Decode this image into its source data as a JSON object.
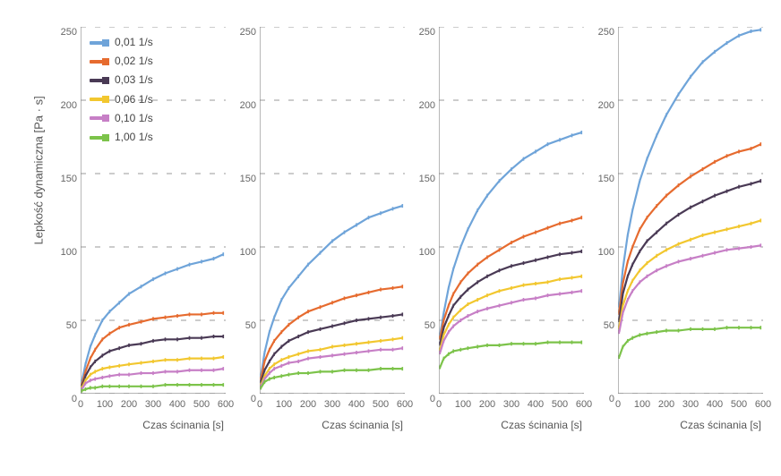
{
  "ylabel": "Lepkość dynamiczna [Pa · s]",
  "xlabel": "Czas ścinania [s]",
  "ylabel_fontsize": 13,
  "xlabel_fontsize": 12,
  "tick_fontsize": 11,
  "background_color": "#ffffff",
  "grid_color": "#cccccc",
  "grid_dash": "2,3",
  "axis_color": "#888888",
  "legend": {
    "items": [
      {
        "label": "0,01 1/s",
        "color": "#6fa4d9"
      },
      {
        "label": "0,02 1/s",
        "color": "#e66b2f"
      },
      {
        "label": "0,03 1/s",
        "color": "#4a3a55"
      },
      {
        "label": "0,06 1/s",
        "color": "#f2c72f"
      },
      {
        "label": "0,10 1/s",
        "color": "#c77fc6"
      },
      {
        "label": "1,00 1/s",
        "color": "#7cc34a"
      }
    ],
    "marker": "square",
    "marker_size": 8,
    "line_width": 3
  },
  "common_axes": {
    "type": "line",
    "xlim": [
      0,
      600
    ],
    "ylim": [
      0,
      250
    ],
    "xticks": [
      0,
      100,
      200,
      300,
      400,
      500,
      600
    ],
    "yticks": [
      0,
      50,
      100,
      150,
      200,
      250
    ],
    "grid_y": true,
    "grid_x": false,
    "line_width": 2.2,
    "marker_size": 3
  },
  "panels": [
    {
      "series": [
        {
          "color": "#6fa4d9",
          "x": [
            5,
            20,
            40,
            60,
            90,
            120,
            160,
            200,
            250,
            300,
            350,
            400,
            450,
            500,
            550,
            590
          ],
          "y": [
            8,
            20,
            32,
            40,
            50,
            56,
            62,
            68,
            73,
            78,
            82,
            85,
            88,
            90,
            92,
            95
          ]
        },
        {
          "color": "#e66b2f",
          "x": [
            5,
            20,
            40,
            60,
            90,
            120,
            160,
            200,
            250,
            300,
            350,
            400,
            450,
            500,
            550,
            590
          ],
          "y": [
            6,
            15,
            24,
            30,
            37,
            41,
            45,
            47,
            49,
            51,
            52,
            53,
            54,
            54,
            55,
            55
          ]
        },
        {
          "color": "#4a3a55",
          "x": [
            5,
            20,
            40,
            60,
            90,
            120,
            160,
            200,
            250,
            300,
            350,
            400,
            450,
            500,
            550,
            590
          ],
          "y": [
            5,
            12,
            18,
            22,
            26,
            29,
            31,
            33,
            34,
            36,
            37,
            37,
            38,
            38,
            39,
            39
          ]
        },
        {
          "color": "#f2c72f",
          "x": [
            5,
            20,
            40,
            60,
            90,
            120,
            160,
            200,
            250,
            300,
            350,
            400,
            450,
            500,
            550,
            590
          ],
          "y": [
            4,
            9,
            13,
            15,
            17,
            18,
            19,
            20,
            21,
            22,
            23,
            23,
            24,
            24,
            24,
            25
          ]
        },
        {
          "color": "#c77fc6",
          "x": [
            5,
            20,
            40,
            60,
            90,
            120,
            160,
            200,
            250,
            300,
            350,
            400,
            450,
            500,
            550,
            590
          ],
          "y": [
            3,
            7,
            9,
            10,
            11,
            12,
            13,
            13,
            14,
            14,
            15,
            15,
            16,
            16,
            16,
            17
          ]
        },
        {
          "color": "#7cc34a",
          "x": [
            5,
            20,
            40,
            60,
            90,
            120,
            160,
            200,
            250,
            300,
            350,
            400,
            450,
            500,
            550,
            590
          ],
          "y": [
            2,
            3,
            4,
            4,
            5,
            5,
            5,
            5,
            5,
            5,
            6,
            6,
            6,
            6,
            6,
            6
          ]
        }
      ]
    },
    {
      "series": [
        {
          "color": "#6fa4d9",
          "x": [
            5,
            20,
            40,
            60,
            90,
            120,
            160,
            200,
            250,
            300,
            350,
            400,
            450,
            500,
            550,
            590
          ],
          "y": [
            12,
            28,
            42,
            52,
            64,
            72,
            80,
            88,
            96,
            104,
            110,
            115,
            120,
            123,
            126,
            128
          ]
        },
        {
          "color": "#e66b2f",
          "x": [
            5,
            20,
            40,
            60,
            90,
            120,
            160,
            200,
            250,
            300,
            350,
            400,
            450,
            500,
            550,
            590
          ],
          "y": [
            10,
            22,
            30,
            36,
            42,
            47,
            52,
            56,
            59,
            62,
            65,
            67,
            69,
            71,
            72,
            73
          ]
        },
        {
          "color": "#4a3a55",
          "x": [
            5,
            20,
            40,
            60,
            90,
            120,
            160,
            200,
            250,
            300,
            350,
            400,
            450,
            500,
            550,
            590
          ],
          "y": [
            8,
            16,
            22,
            27,
            32,
            36,
            39,
            42,
            44,
            46,
            48,
            50,
            51,
            52,
            53,
            54
          ]
        },
        {
          "color": "#f2c72f",
          "x": [
            5,
            20,
            40,
            60,
            90,
            120,
            160,
            200,
            250,
            300,
            350,
            400,
            450,
            500,
            550,
            590
          ],
          "y": [
            6,
            12,
            17,
            20,
            23,
            25,
            27,
            29,
            30,
            32,
            33,
            34,
            35,
            36,
            37,
            38
          ]
        },
        {
          "color": "#c77fc6",
          "x": [
            5,
            20,
            40,
            60,
            90,
            120,
            160,
            200,
            250,
            300,
            350,
            400,
            450,
            500,
            550,
            590
          ],
          "y": [
            5,
            10,
            14,
            17,
            19,
            21,
            22,
            24,
            25,
            26,
            27,
            28,
            29,
            30,
            30,
            31
          ]
        },
        {
          "color": "#7cc34a",
          "x": [
            5,
            20,
            40,
            60,
            90,
            120,
            160,
            200,
            250,
            300,
            350,
            400,
            450,
            500,
            550,
            590
          ],
          "y": [
            4,
            8,
            10,
            11,
            12,
            13,
            14,
            14,
            15,
            15,
            16,
            16,
            16,
            17,
            17,
            17
          ]
        }
      ]
    },
    {
      "series": [
        {
          "color": "#6fa4d9",
          "x": [
            5,
            20,
            40,
            60,
            90,
            120,
            160,
            200,
            250,
            300,
            350,
            400,
            450,
            500,
            550,
            590
          ],
          "y": [
            40,
            55,
            72,
            85,
            100,
            112,
            125,
            135,
            145,
            153,
            160,
            165,
            170,
            173,
            176,
            178
          ]
        },
        {
          "color": "#e66b2f",
          "x": [
            5,
            20,
            40,
            60,
            90,
            120,
            160,
            200,
            250,
            300,
            350,
            400,
            450,
            500,
            550,
            590
          ],
          "y": [
            38,
            50,
            60,
            68,
            76,
            82,
            88,
            93,
            98,
            103,
            107,
            110,
            113,
            116,
            118,
            120
          ]
        },
        {
          "color": "#4a3a55",
          "x": [
            5,
            20,
            40,
            60,
            90,
            120,
            160,
            200,
            250,
            300,
            350,
            400,
            450,
            500,
            550,
            590
          ],
          "y": [
            34,
            45,
            53,
            60,
            66,
            71,
            76,
            80,
            84,
            87,
            89,
            91,
            93,
            95,
            96,
            97
          ]
        },
        {
          "color": "#f2c72f",
          "x": [
            5,
            20,
            40,
            60,
            90,
            120,
            160,
            200,
            250,
            300,
            350,
            400,
            450,
            500,
            550,
            590
          ],
          "y": [
            30,
            40,
            47,
            52,
            57,
            61,
            64,
            67,
            70,
            72,
            74,
            75,
            76,
            78,
            79,
            80
          ]
        },
        {
          "color": "#c77fc6",
          "x": [
            5,
            20,
            40,
            60,
            90,
            120,
            160,
            200,
            250,
            300,
            350,
            400,
            450,
            500,
            550,
            590
          ],
          "y": [
            28,
            36,
            42,
            46,
            50,
            53,
            56,
            58,
            60,
            62,
            64,
            65,
            67,
            68,
            69,
            70
          ]
        },
        {
          "color": "#7cc34a",
          "x": [
            5,
            20,
            40,
            60,
            90,
            120,
            160,
            200,
            250,
            300,
            350,
            400,
            450,
            500,
            550,
            590
          ],
          "y": [
            18,
            24,
            27,
            29,
            30,
            31,
            32,
            33,
            33,
            34,
            34,
            34,
            35,
            35,
            35,
            35
          ]
        }
      ]
    },
    {
      "series": [
        {
          "color": "#6fa4d9",
          "x": [
            5,
            20,
            40,
            60,
            90,
            120,
            160,
            200,
            250,
            300,
            350,
            400,
            450,
            500,
            550,
            590
          ],
          "y": [
            60,
            85,
            108,
            125,
            145,
            160,
            176,
            190,
            204,
            216,
            226,
            233,
            239,
            244,
            247,
            248
          ]
        },
        {
          "color": "#e66b2f",
          "x": [
            5,
            20,
            40,
            60,
            90,
            120,
            160,
            200,
            250,
            300,
            350,
            400,
            450,
            500,
            550,
            590
          ],
          "y": [
            55,
            75,
            90,
            100,
            112,
            120,
            128,
            135,
            142,
            148,
            153,
            158,
            162,
            165,
            167,
            170
          ]
        },
        {
          "color": "#4a3a55",
          "x": [
            5,
            20,
            40,
            60,
            90,
            120,
            160,
            200,
            250,
            300,
            350,
            400,
            450,
            500,
            550,
            590
          ],
          "y": [
            50,
            68,
            80,
            88,
            97,
            104,
            110,
            116,
            122,
            127,
            131,
            135,
            138,
            141,
            143,
            145
          ]
        },
        {
          "color": "#f2c72f",
          "x": [
            5,
            20,
            40,
            60,
            90,
            120,
            160,
            200,
            250,
            300,
            350,
            400,
            450,
            500,
            550,
            590
          ],
          "y": [
            45,
            60,
            70,
            77,
            84,
            89,
            94,
            98,
            102,
            105,
            108,
            110,
            112,
            114,
            116,
            118
          ]
        },
        {
          "color": "#c77fc6",
          "x": [
            5,
            20,
            40,
            60,
            90,
            120,
            160,
            200,
            250,
            300,
            350,
            400,
            450,
            500,
            550,
            590
          ],
          "y": [
            42,
            55,
            64,
            70,
            76,
            80,
            84,
            87,
            90,
            92,
            94,
            96,
            98,
            99,
            100,
            101
          ]
        },
        {
          "color": "#7cc34a",
          "x": [
            5,
            20,
            40,
            60,
            90,
            120,
            160,
            200,
            250,
            300,
            350,
            400,
            450,
            500,
            550,
            590
          ],
          "y": [
            25,
            32,
            36,
            38,
            40,
            41,
            42,
            43,
            43,
            44,
            44,
            44,
            45,
            45,
            45,
            45
          ]
        }
      ]
    }
  ]
}
